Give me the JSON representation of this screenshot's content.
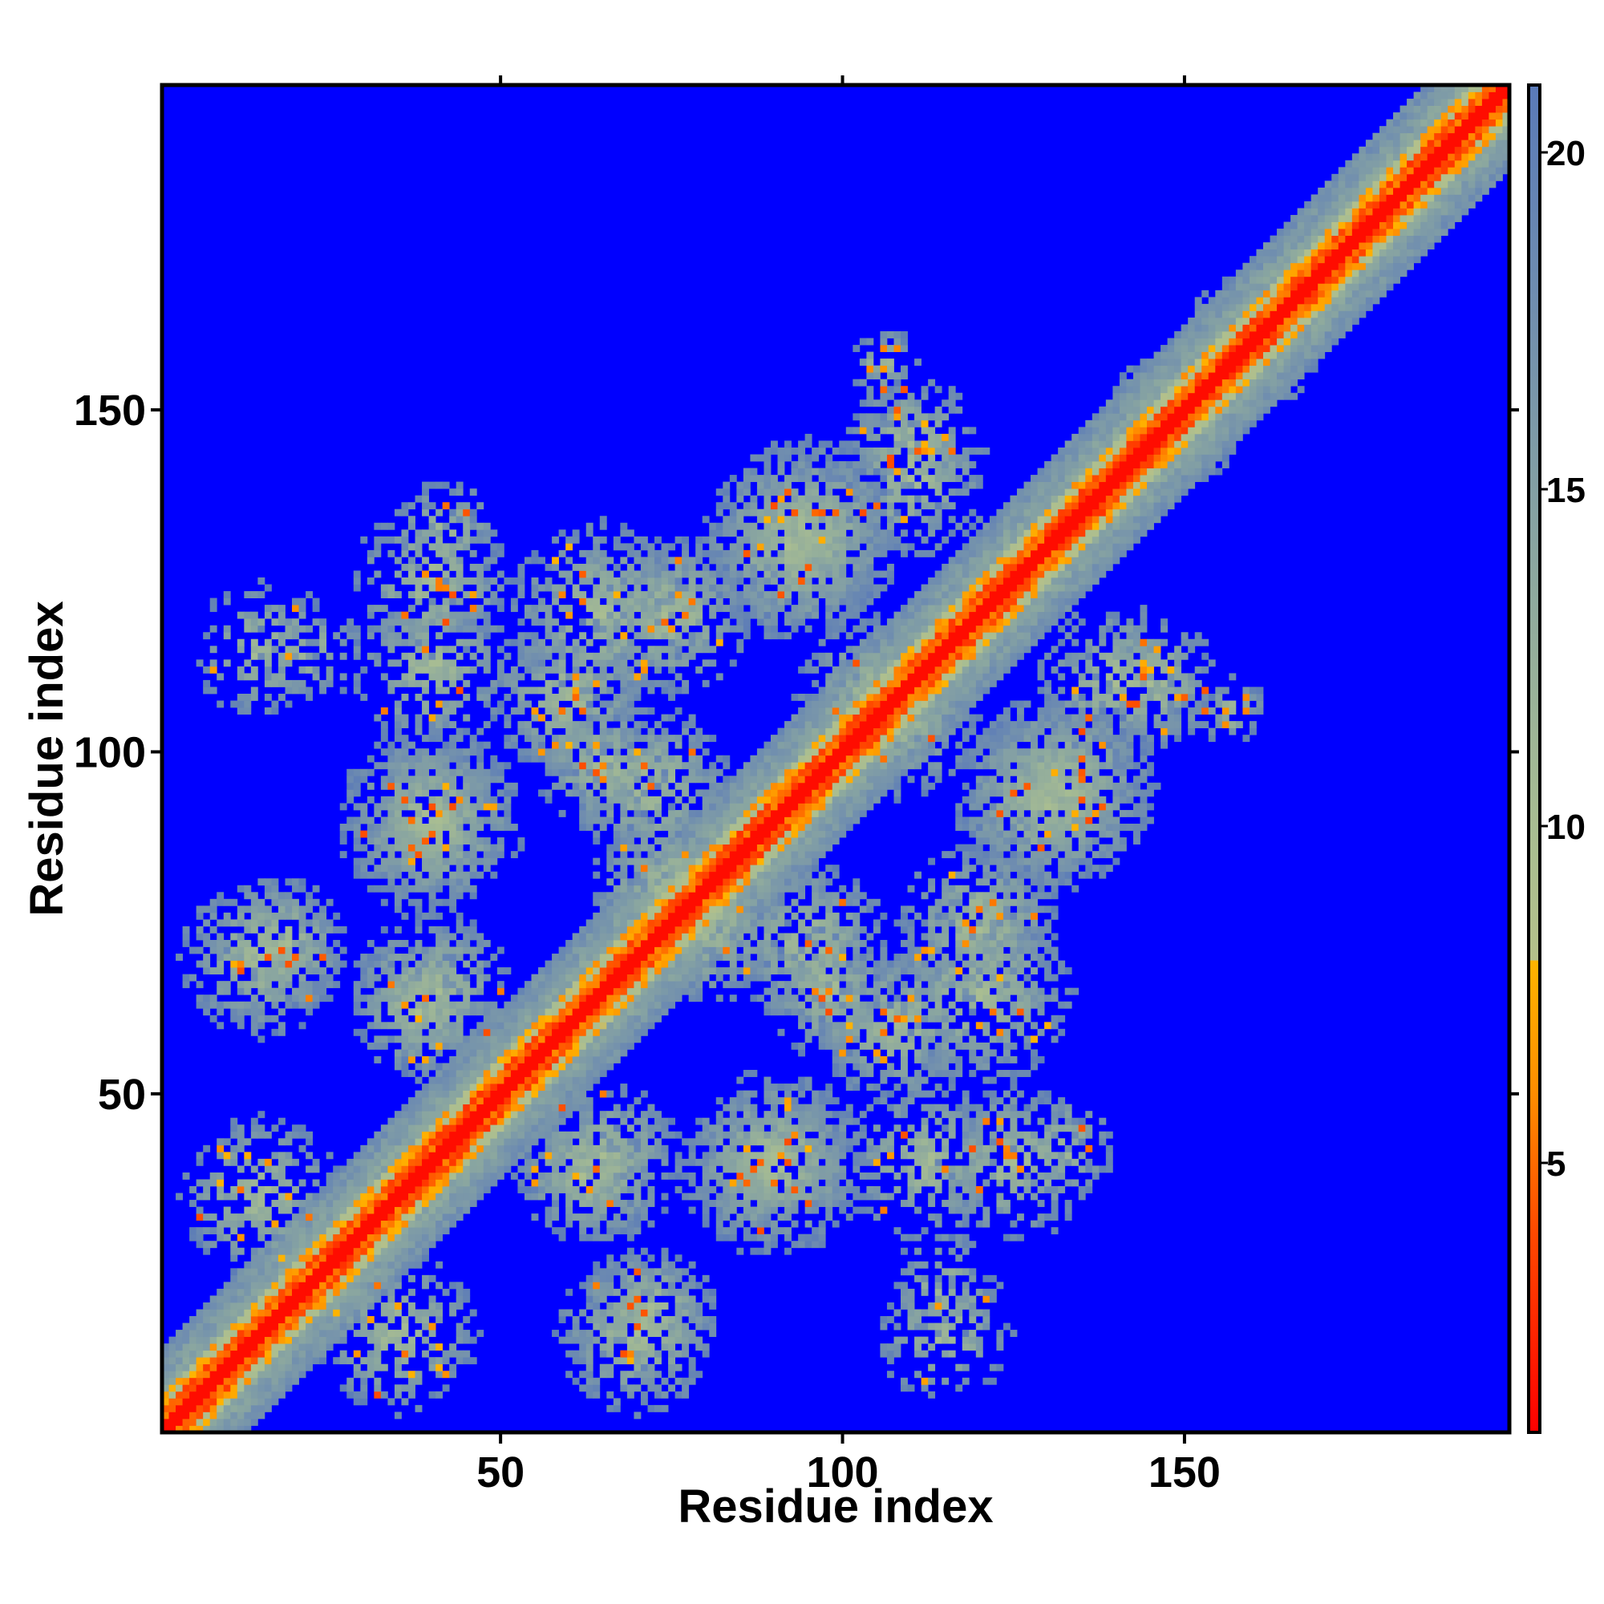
{
  "chart_data": {
    "type": "heatmap",
    "title": "",
    "xlabel": "Residue index",
    "ylabel": "Residue index",
    "xlim": [
      1,
      197
    ],
    "ylim": [
      1,
      197
    ],
    "matrix_size": 197,
    "x_ticks": [
      50,
      100,
      150
    ],
    "y_ticks": [
      50,
      100,
      150
    ],
    "x_tick_labels": [
      "50",
      "100",
      "150"
    ],
    "y_tick_labels": [
      "50",
      "100",
      "150"
    ],
    "colorbar": {
      "range": [
        1,
        21
      ],
      "ticks": [
        5,
        10,
        15,
        20
      ],
      "tick_labels": [
        "5",
        "10",
        "15",
        "20"
      ],
      "stops": [
        {
          "value": 1,
          "color": "#ff0000"
        },
        {
          "value": 4,
          "color": "#ff4a00"
        },
        {
          "value": 6,
          "color": "#ff8c00"
        },
        {
          "value": 8,
          "color": "#ffb400"
        },
        {
          "value": 8.01,
          "color": "#b4c08a"
        },
        {
          "value": 10,
          "color": "#a8bd92"
        },
        {
          "value": 14,
          "color": "#8aa6a0"
        },
        {
          "value": 18,
          "color": "#6e8cb0"
        },
        {
          "value": 20.99,
          "color": "#5a7ab8"
        },
        {
          "value": 21,
          "color": "#0000ff"
        }
      ]
    },
    "background_color": "#0000ff",
    "diagonal_band": {
      "core_value": 2,
      "width_residues": 12
    },
    "contact_clusters": [
      {
        "x": 18,
        "y": 72,
        "radius": 10,
        "density": 0.55
      },
      {
        "x": 40,
        "y": 90,
        "radius": 14,
        "density": 0.6
      },
      {
        "x": 40,
        "y": 125,
        "radius": 12,
        "density": 0.5
      },
      {
        "x": 15,
        "y": 35,
        "radius": 12,
        "density": 0.5
      },
      {
        "x": 22,
        "y": 115,
        "radius": 8,
        "density": 0.35
      },
      {
        "x": 40,
        "y": 65,
        "radius": 12,
        "density": 0.6
      },
      {
        "x": 62,
        "y": 38,
        "radius": 10,
        "density": 0.6
      },
      {
        "x": 70,
        "y": 15,
        "radius": 12,
        "density": 0.6
      },
      {
        "x": 65,
        "y": 120,
        "radius": 14,
        "density": 0.6
      },
      {
        "x": 65,
        "y": 98,
        "radius": 10,
        "density": 0.55
      },
      {
        "x": 75,
        "y": 80,
        "radius": 12,
        "density": 0.6
      },
      {
        "x": 90,
        "y": 40,
        "radius": 12,
        "density": 0.6
      },
      {
        "x": 95,
        "y": 72,
        "radius": 12,
        "density": 0.6
      },
      {
        "x": 95,
        "y": 132,
        "radius": 14,
        "density": 0.6
      },
      {
        "x": 105,
        "y": 108,
        "radius": 12,
        "density": 0.55
      },
      {
        "x": 110,
        "y": 145,
        "radius": 10,
        "density": 0.5
      },
      {
        "x": 108,
        "y": 60,
        "radius": 12,
        "density": 0.6
      },
      {
        "x": 112,
        "y": 40,
        "radius": 12,
        "density": 0.5
      },
      {
        "x": 120,
        "y": 75,
        "radius": 12,
        "density": 0.6
      },
      {
        "x": 130,
        "y": 93,
        "radius": 14,
        "density": 0.6
      },
      {
        "x": 140,
        "y": 110,
        "radius": 12,
        "density": 0.5
      },
      {
        "x": 157,
        "y": 106,
        "radius": 5,
        "density": 0.5
      },
      {
        "x": 132,
        "y": 42,
        "radius": 8,
        "density": 0.35
      },
      {
        "x": 115,
        "y": 15,
        "radius": 10,
        "density": 0.35
      },
      {
        "x": 160,
        "y": 160,
        "radius": 10,
        "density": 0.4
      },
      {
        "x": 148,
        "y": 148,
        "radius": 10,
        "density": 0.4
      }
    ]
  }
}
